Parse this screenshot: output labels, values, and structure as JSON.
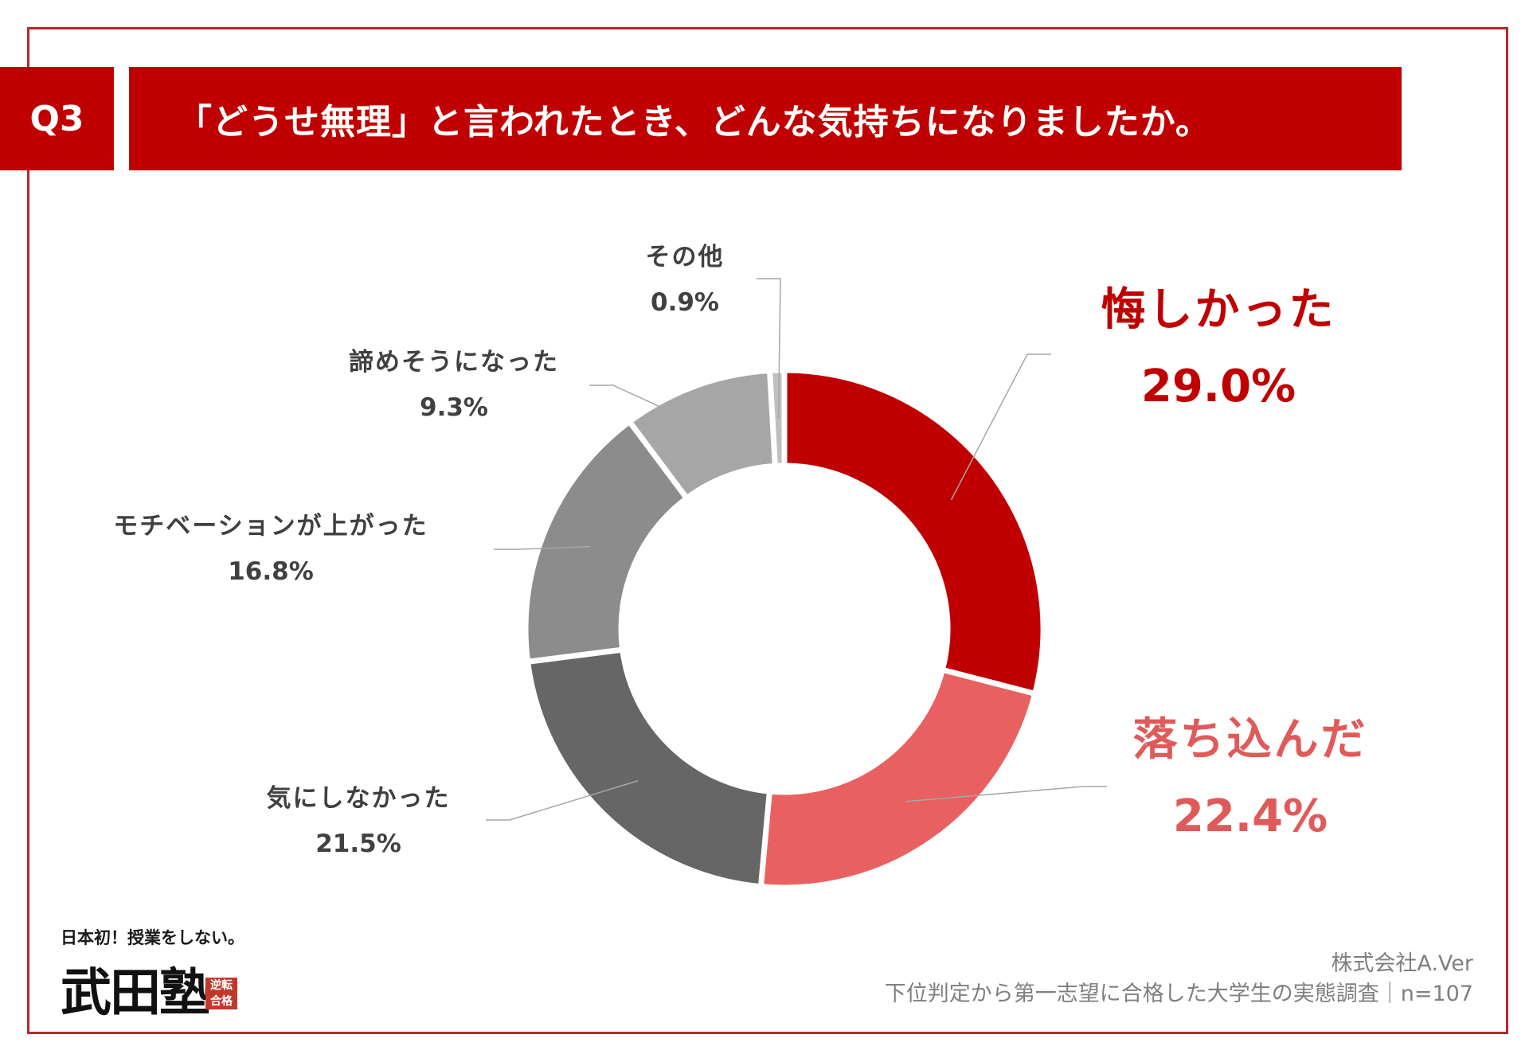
{
  "header": {
    "badge": "Q3",
    "question": "「どうせ無理」と言われたとき、どんな気持ちになりましたか。"
  },
  "chart_data": {
    "type": "pie",
    "variant": "donut",
    "slices": [
      {
        "label": "悔しかった",
        "value": 29.0,
        "display": "29.0%",
        "color": "#c00000",
        "label_color": "#c00000",
        "emphasis": true
      },
      {
        "label": "落ち込んだ",
        "value": 22.4,
        "display": "22.4%",
        "color": "#e86060",
        "label_color": "#e05a5a",
        "emphasis": true
      },
      {
        "label": "気にしなかった",
        "value": 21.5,
        "display": "21.5%",
        "color": "#666666",
        "label_color": "#404040",
        "emphasis": false
      },
      {
        "label": "モチベーションが上がった",
        "value": 16.8,
        "display": "16.8%",
        "color": "#8c8c8c",
        "label_color": "#404040",
        "emphasis": false
      },
      {
        "label": "諦めそうになった",
        "value": 9.3,
        "display": "9.3%",
        "color": "#a6a6a6",
        "label_color": "#404040",
        "emphasis": false
      },
      {
        "label": "その他",
        "value": 0.9,
        "display": "0.9%",
        "color": "#bfbfbf",
        "label_color": "#404040",
        "emphasis": false
      }
    ],
    "direction": "clockwise",
    "start": "top"
  },
  "footer": {
    "company": "株式会社A.Ver",
    "survey": "下位判定から第一志望に合格した大学生の実態調査｜n=107"
  },
  "logo": {
    "tagline": "日本初！授業をしない。",
    "brand": "武田塾",
    "stamp": "逆転合格"
  }
}
